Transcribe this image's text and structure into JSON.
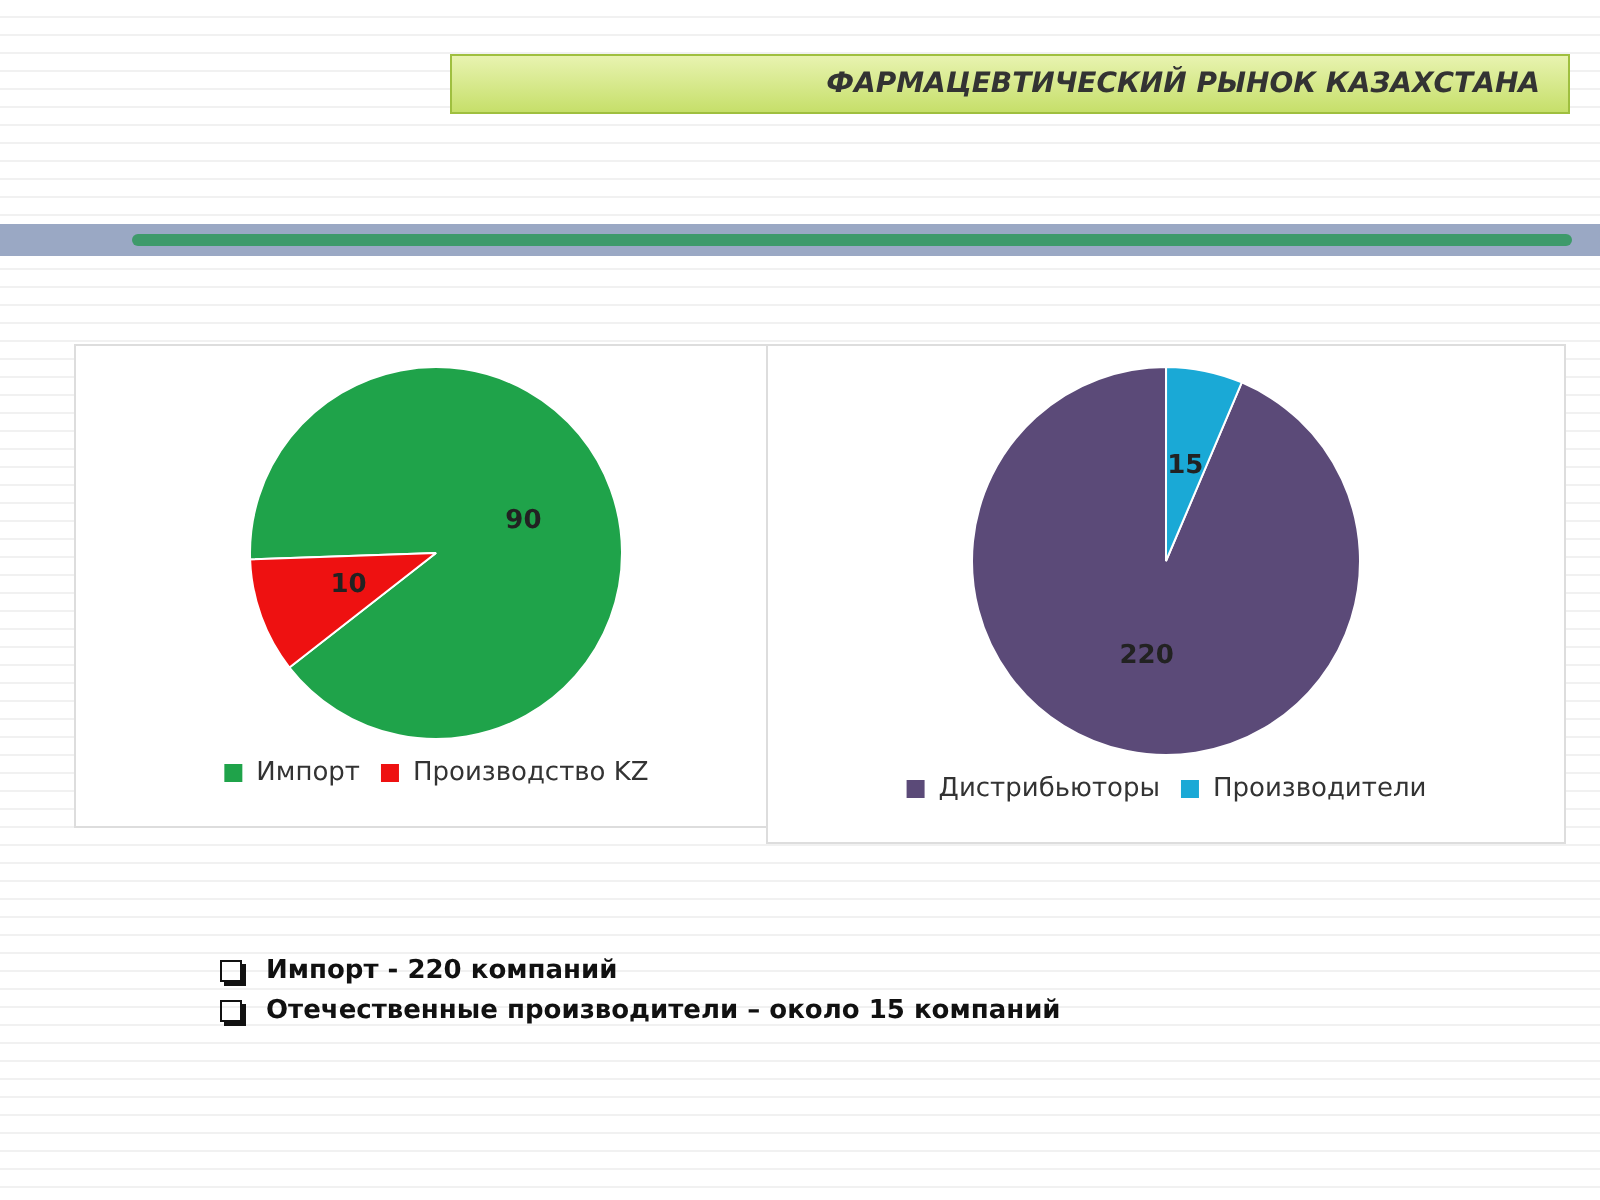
{
  "chart_data": [
    {
      "type": "other",
      "title": "ФАРМАЦЕВТИЧЕСКИЙ РЫНОК КАЗАХСТАНА"
    },
    {
      "type": "pie",
      "categories": [
        "Импорт",
        "Производство KZ"
      ],
      "values": [
        90,
        10
      ],
      "colors": [
        "#1fa34a",
        "#ee1111"
      ],
      "data_labels": true,
      "legend": "bottom"
    },
    {
      "type": "pie",
      "categories": [
        "Дистрибьюторы",
        "Производители"
      ],
      "values": [
        220,
        15
      ],
      "colors": [
        "#5b4a78",
        "#1aa9d6"
      ],
      "data_labels": true,
      "legend": "bottom"
    },
    {
      "type": "other",
      "annotations": [
        "Импорт - 220 компаний",
        "Отечественные производители – около 15 компаний"
      ]
    }
  ]
}
